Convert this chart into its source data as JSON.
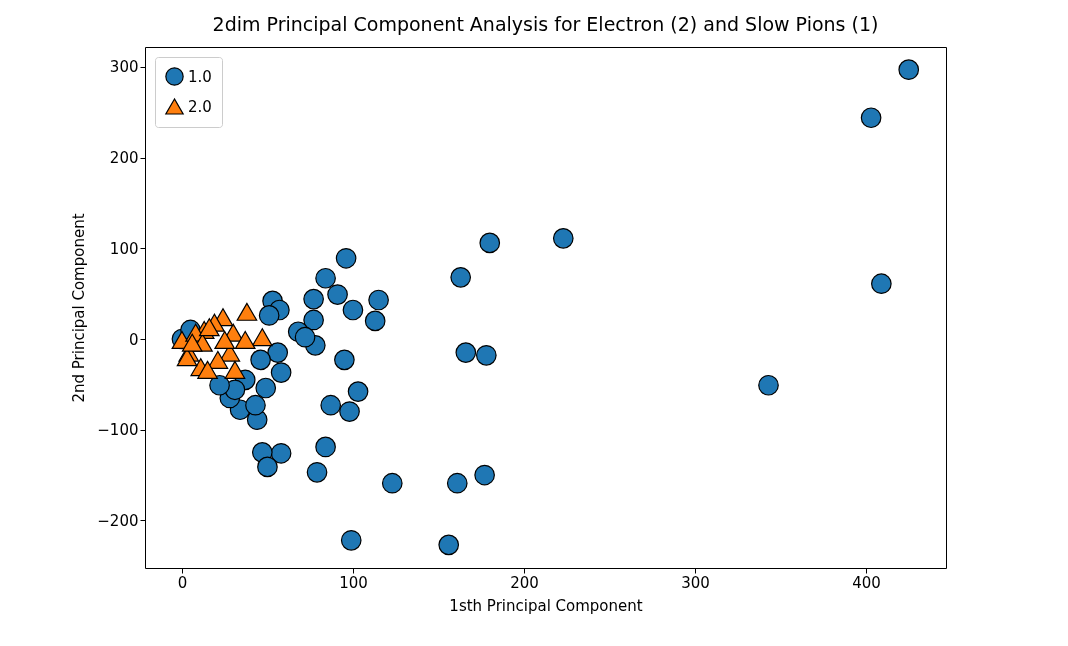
{
  "chart_data": {
    "type": "scatter",
    "title": "2dim Principal Component Analysis for Electron (2) and Slow Pions (1)",
    "xlabel": "1sth Principal Component",
    "ylabel": "2nd Principal Component",
    "xlim": [
      -21.6,
      446.8
    ],
    "ylim": [
      -252.5,
      322
    ],
    "xticks": [
      0,
      100,
      200,
      300,
      400
    ],
    "yticks": [
      {
        "value": -200,
        "label": "−200"
      },
      {
        "value": -100,
        "label": "−100"
      },
      0,
      100,
      200,
      300
    ],
    "grid": false,
    "legend": "top left",
    "series": [
      {
        "name": "1.0",
        "color": "#1f77b4",
        "marker": "circle",
        "x": [
          425,
          403,
          409,
          343,
          223,
          180,
          163,
          166,
          178,
          177,
          161,
          123,
          156,
          99,
          96,
          84,
          91,
          115,
          113,
          100,
          77,
          77,
          78,
          95,
          103,
          87,
          98,
          84,
          79,
          53,
          57,
          51,
          68,
          72,
          58,
          56,
          49,
          58,
          47,
          50,
          44,
          34,
          28,
          43,
          37,
          31,
          22,
          0,
          5,
          46
        ],
        "values": [
          297,
          244,
          61,
          -51,
          111,
          106,
          68,
          -15,
          -18,
          -150,
          -159,
          -159,
          -227,
          -222,
          89,
          67,
          49,
          43,
          20,
          32,
          44,
          21,
          -7,
          -23,
          -58,
          -73,
          -80,
          -119,
          -147,
          42,
          32,
          26,
          8,
          2,
          -37,
          -15,
          -54,
          -126,
          -125,
          -141,
          -89,
          -78,
          -65,
          -73,
          -45,
          -56,
          -51,
          0,
          10,
          -23
        ]
      },
      {
        "name": "2.0",
        "color": "#ff7f0e",
        "marker": "triangle",
        "x": [
          0,
          38,
          30,
          47,
          24,
          19,
          13,
          8,
          12,
          28,
          21,
          11,
          31,
          4,
          37,
          3,
          15,
          6,
          16,
          25
        ],
        "values": [
          -1,
          30,
          7,
          2,
          24,
          18,
          10,
          7,
          -4,
          -15,
          -23,
          -31,
          -34,
          -15,
          -1,
          -20,
          -34,
          -4,
          13,
          -1
        ]
      }
    ]
  }
}
